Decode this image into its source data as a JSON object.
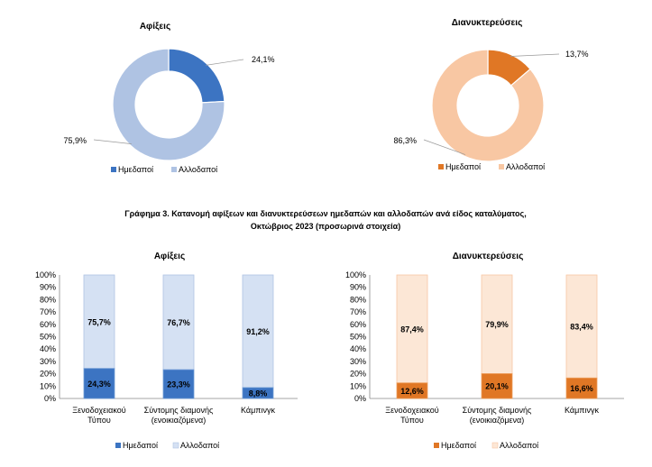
{
  "header_partial": "",
  "section_caption": {
    "line1": "Γράφημα 3. Κατανομή αφίξεων και διανυκτερεύσεων ημεδαπών και αλλοδαπών ανά είδος καταλύματος,",
    "line2": "Οκτώβριος 2023 (προσωρινά στοιχεία)"
  },
  "colors": {
    "blue_dark": "#3C74C2",
    "blue_light": "#AFC3E3",
    "blue_bar_light": "#D5E1F3",
    "orange_dark": "#E07725",
    "orange_light": "#F8C7A3",
    "orange_bar_light": "#FCE7D6"
  },
  "chart_data": [
    {
      "type": "pie",
      "title": "Αφίξεις",
      "labels": [
        "Ημεδαποί",
        "Αλλοδαποί"
      ],
      "values": [
        24.1,
        75.9
      ],
      "value_labels": [
        "24,1%",
        "75,9%"
      ],
      "legend": [
        "Ημεδαποί",
        "Αλλοδαποί"
      ]
    },
    {
      "type": "pie",
      "title": "Διανυκτερεύσεις",
      "labels": [
        "Ημεδαποί",
        "Αλλοδαποί"
      ],
      "values": [
        13.7,
        86.3
      ],
      "value_labels": [
        "13,7%",
        "86,3%"
      ],
      "legend": [
        "Ημεδαποί",
        "Αλλοδαποί"
      ]
    },
    {
      "type": "bar",
      "stacked": true,
      "percent": true,
      "title": "Αφίξεις",
      "categories": [
        [
          "Ξενοδοχειακού",
          "Τύπου"
        ],
        [
          "Σύντομης διαμονής",
          "(ενοικιαζόμενα)"
        ],
        [
          "Κάμπινγκ"
        ]
      ],
      "series": [
        {
          "name": "Ημεδαποί",
          "values": [
            24.3,
            23.3,
            8.8
          ],
          "labels": [
            "24,3%",
            "23,3%",
            "8,8%"
          ]
        },
        {
          "name": "Αλλοδαποί",
          "values": [
            75.7,
            76.7,
            91.2
          ],
          "labels": [
            "75,7%",
            "76,7%",
            "91,2%"
          ]
        }
      ],
      "ylim": [
        0,
        100
      ],
      "yticks": [
        "0%",
        "10%",
        "20%",
        "30%",
        "40%",
        "50%",
        "60%",
        "70%",
        "80%",
        "90%",
        "100%"
      ],
      "legend": "bottom"
    },
    {
      "type": "bar",
      "stacked": true,
      "percent": true,
      "title": "Διανυκτερεύσεις",
      "categories": [
        [
          "Ξενοδοχειακού",
          "Τύπου"
        ],
        [
          "Σύντομης διαμονής",
          "(ενοικιαζόμενα)"
        ],
        [
          "Κάμπινγκ"
        ]
      ],
      "series": [
        {
          "name": "Ημεδαποί",
          "values": [
            12.6,
            20.1,
            16.6
          ],
          "labels": [
            "12,6%",
            "20,1%",
            "16,6%"
          ]
        },
        {
          "name": "Αλλοδαποί",
          "values": [
            87.4,
            79.9,
            83.4
          ],
          "labels": [
            "87,4%",
            "79,9%",
            "83,4%"
          ]
        }
      ],
      "ylim": [
        0,
        100
      ],
      "yticks": [
        "0%",
        "10%",
        "20%",
        "30%",
        "40%",
        "50%",
        "60%",
        "70%",
        "80%",
        "90%",
        "100%"
      ],
      "legend": "bottom"
    }
  ]
}
